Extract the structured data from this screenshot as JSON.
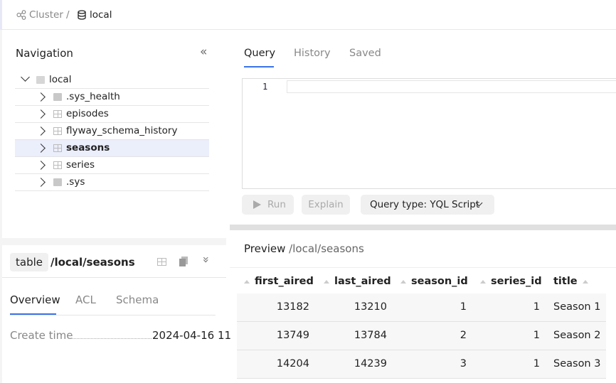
{
  "breadcrumb": {
    "cluster": "Cluster",
    "separator": "/",
    "database": "local"
  },
  "navigation": {
    "title": "Navigation",
    "root": "local",
    "items": [
      {
        "label": ".sys_health",
        "icon": "folder-icon"
      },
      {
        "label": "episodes",
        "icon": "table-icon"
      },
      {
        "label": "flyway_schema_history",
        "icon": "table-icon"
      },
      {
        "label": "seasons",
        "icon": "table-icon",
        "selected": true
      },
      {
        "label": "series",
        "icon": "table-icon"
      },
      {
        "label": ".sys",
        "icon": "folder-icon"
      }
    ]
  },
  "object": {
    "type": "table",
    "path": "/local/seasons",
    "tabs": [
      "Overview",
      "ACL",
      "Schema"
    ],
    "active_tab": "Overview",
    "create_time_label": "Create time",
    "create_time_value": "2024-04-16 11"
  },
  "query": {
    "tabs": [
      "Query",
      "History",
      "Saved"
    ],
    "active_tab": "Query",
    "line_number": "1",
    "run": "Run",
    "explain": "Explain",
    "query_type": "Query type: YQL Script"
  },
  "preview": {
    "title": "Preview",
    "path": "/local/seasons",
    "columns": [
      "first_aired",
      "last_aired",
      "season_id",
      "series_id",
      "title"
    ],
    "rows": [
      [
        "13182",
        "13210",
        "1",
        "1",
        "Season 1"
      ],
      [
        "13749",
        "13784",
        "2",
        "1",
        "Season 2"
      ],
      [
        "14204",
        "14239",
        "3",
        "1",
        "Season 3"
      ]
    ]
  },
  "colors": {
    "accent": "#3a73e8",
    "selected_row": "#ebeefb"
  }
}
